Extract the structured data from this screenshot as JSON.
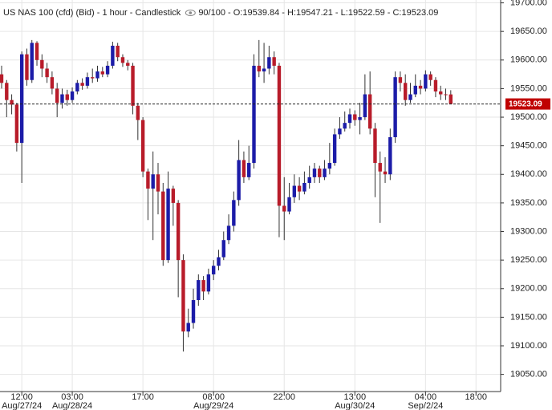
{
  "chart_data": {
    "type": "candlestick",
    "title": "US NAS 100 (cfd) (Bid) - 1 hour - Candlestick",
    "info": "90/100 - O:19539.84 - H:19547.21 - L:19522.59 - C:19523.09",
    "categories": [
      null,
      null,
      null,
      null,
      "12:00",
      null,
      null,
      null,
      null,
      null,
      null,
      null,
      null,
      null,
      "03:00",
      null,
      null,
      null,
      null,
      null,
      null,
      null,
      null,
      null,
      null,
      null,
      null,
      null,
      "17:00",
      null,
      null,
      null,
      null,
      null,
      null,
      null,
      null,
      null,
      null,
      null,
      null,
      null,
      "08:00",
      null,
      null,
      null,
      null,
      null,
      null,
      null,
      null,
      null,
      null,
      null,
      null,
      null,
      "22:00",
      null,
      null,
      null,
      null,
      null,
      null,
      null,
      null,
      null,
      null,
      null,
      null,
      null,
      "13:00",
      null,
      null,
      null,
      null,
      null,
      null,
      null,
      null,
      null,
      null,
      null,
      null,
      null,
      "04:00",
      null,
      null,
      null,
      null,
      null,
      null,
      null,
      null,
      null,
      "18:00"
    ],
    "dates": [
      null,
      null,
      null,
      null,
      "Aug/27/24",
      null,
      null,
      null,
      null,
      null,
      null,
      null,
      null,
      null,
      "Aug/28/24",
      null,
      null,
      null,
      null,
      null,
      null,
      null,
      null,
      null,
      null,
      null,
      null,
      null,
      null,
      null,
      null,
      null,
      null,
      null,
      null,
      null,
      null,
      null,
      null,
      null,
      null,
      null,
      "Aug/29/24",
      null,
      null,
      null,
      null,
      null,
      null,
      null,
      null,
      null,
      null,
      null,
      null,
      null,
      null,
      null,
      null,
      null,
      null,
      null,
      null,
      null,
      null,
      null,
      null,
      null,
      null,
      null,
      "Aug/30/24",
      null,
      null,
      null,
      null,
      null,
      null,
      null,
      null,
      null,
      null,
      null,
      null,
      null,
      "Sep/2/24",
      null,
      null,
      null,
      null,
      null,
      null,
      null,
      null,
      null,
      null
    ],
    "open": [
      19575,
      19560,
      19530,
      19522,
      19455,
      19610,
      19565,
      19630,
      19600,
      19585,
      19570,
      19550,
      19525,
      19540,
      19530,
      19545,
      19560,
      19555,
      19570,
      19568,
      19580,
      19575,
      19590,
      19625,
      19605,
      19595,
      19590,
      19520,
      19495,
      19405,
      19375,
      19400,
      19370,
      19250,
      19375,
      19350,
      19250,
      19125,
      19140,
      19180,
      19215,
      19195,
      19225,
      19240,
      19255,
      19285,
      19310,
      19355,
      19425,
      19395,
      19420,
      19590,
      19580,
      19585,
      19605,
      19590,
      19345,
      19335,
      19360,
      19380,
      19370,
      19385,
      19395,
      19410,
      19395,
      19410,
      19420,
      19470,
      19480,
      19490,
      19505,
      19495,
      19500,
      19540,
      19480,
      19420,
      19405,
      19400,
      19465,
      19570,
      19560,
      19530,
      19540,
      19555,
      19550,
      19575,
      19565,
      19545,
      19540,
      19539.84,
      null,
      null,
      null,
      null,
      null
    ],
    "high": [
      19590,
      19565,
      19540,
      19525,
      19615,
      19620,
      19635,
      19633,
      19610,
      19595,
      19580,
      19560,
      19550,
      19548,
      19552,
      19565,
      19568,
      19578,
      19585,
      19590,
      19588,
      19598,
      19632,
      19630,
      19610,
      19600,
      19595,
      19525,
      19500,
      19410,
      19440,
      19420,
      19385,
      19405,
      19380,
      19355,
      19260,
      19165,
      19200,
      19225,
      19222,
      19235,
      19250,
      19268,
      19300,
      19330,
      19370,
      19460,
      19440,
      19450,
      19610,
      19635,
      19630,
      19625,
      19615,
      19595,
      19395,
      19385,
      19400,
      19395,
      19405,
      19415,
      19420,
      19415,
      19425,
      19455,
      19480,
      19500,
      19510,
      19515,
      19512,
      19525,
      19575,
      19580,
      19490,
      19440,
      19430,
      19480,
      19580,
      19580,
      19575,
      19560,
      19575,
      19565,
      19582,
      19580,
      19570,
      19555,
      19550,
      19547.21,
      null,
      null,
      null,
      null,
      null
    ],
    "low": [
      19550,
      19500,
      19505,
      19440,
      19385,
      19555,
      19560,
      19590,
      19570,
      19560,
      19540,
      19500,
      19515,
      19520,
      19525,
      19540,
      19548,
      19550,
      19560,
      19562,
      19570,
      19570,
      19585,
      19598,
      19588,
      19582,
      19505,
      19460,
      19395,
      19320,
      19285,
      19330,
      19240,
      19245,
      19310,
      19185,
      19090,
      19115,
      19130,
      19170,
      19180,
      19190,
      19215,
      19232,
      19250,
      19278,
      19300,
      19345,
      19385,
      19390,
      19410,
      19570,
      19560,
      19575,
      19575,
      19290,
      19285,
      19330,
      19350,
      19355,
      19365,
      19375,
      19385,
      19385,
      19390,
      19400,
      19415,
      19462,
      19475,
      19480,
      19485,
      19470,
      19495,
      19470,
      19360,
      19315,
      19385,
      19390,
      19455,
      19545,
      19520,
      19525,
      19535,
      19540,
      19545,
      19555,
      19535,
      19530,
      19530,
      19522.59,
      null,
      null,
      null,
      null,
      null
    ],
    "close": [
      19560,
      19530,
      19522,
      19455,
      19610,
      19565,
      19630,
      19600,
      19585,
      19570,
      19550,
      19525,
      19540,
      19530,
      19545,
      19560,
      19555,
      19570,
      19568,
      19580,
      19575,
      19590,
      19625,
      19605,
      19595,
      19590,
      19520,
      19495,
      19405,
      19375,
      19400,
      19370,
      19250,
      19375,
      19350,
      19250,
      19125,
      19140,
      19180,
      19215,
      19195,
      19225,
      19240,
      19255,
      19285,
      19310,
      19355,
      19425,
      19395,
      19420,
      19590,
      19580,
      19585,
      19605,
      19590,
      19345,
      19335,
      19360,
      19380,
      19370,
      19385,
      19395,
      19410,
      19395,
      19410,
      19420,
      19470,
      19480,
      19490,
      19505,
      19495,
      19500,
      19540,
      19480,
      19420,
      19405,
      19400,
      19465,
      19570,
      19560,
      19530,
      19540,
      19555,
      19550,
      19575,
      19565,
      19545,
      19540,
      19539.84,
      19523.09,
      null,
      null,
      null,
      null,
      null
    ],
    "up_color": "#1c1ca8",
    "down_color": "#b81c2a",
    "last_price": {
      "value": 19523.09,
      "label": "19523.09"
    },
    "ylim": [
      19020,
      19705
    ],
    "yticks": [
      {
        "value": 19050,
        "label": "19050.00"
      },
      {
        "value": 19100,
        "label": "19100.00"
      },
      {
        "value": 19150,
        "label": "19150.00"
      },
      {
        "value": 19200,
        "label": "19200.00"
      },
      {
        "value": 19250,
        "label": "19250.00"
      },
      {
        "value": 19300,
        "label": "19300.00"
      },
      {
        "value": 19350,
        "label": "19350.00"
      },
      {
        "value": 19400,
        "label": "19400.00"
      },
      {
        "value": 19450,
        "label": "19450.00"
      },
      {
        "value": 19500,
        "label": "19500.00"
      },
      {
        "value": 19550,
        "label": "19550.00"
      },
      {
        "value": 19600,
        "label": "19600.00"
      },
      {
        "value": 19650,
        "label": "19650.00"
      },
      {
        "value": 19700,
        "label": "19700.00"
      }
    ],
    "grid": true
  }
}
